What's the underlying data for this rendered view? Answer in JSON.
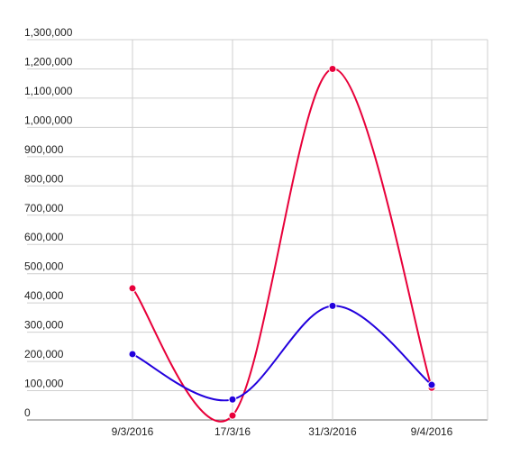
{
  "chart_data": {
    "type": "line",
    "title": "",
    "xlabel": "",
    "ylabel": "",
    "categories": [
      "9/3/2016",
      "17/3/16",
      "31/3/2016",
      "9/4/2016"
    ],
    "y_ticks": [
      "1,300,000",
      "1,200,000",
      "1,100,000",
      "1,000,000",
      "900,000",
      "800,000",
      "700,000",
      "600,000",
      "500,000",
      "400,000",
      "300,000",
      "200,000",
      "100,000",
      "0"
    ],
    "ylim": [
      0,
      1300000
    ],
    "grid": true,
    "curve": "smooth",
    "series": [
      {
        "color": "#e8003a",
        "values": [
          450000,
          15000,
          1200000,
          110000
        ]
      },
      {
        "color": "#2200dd",
        "values": [
          225000,
          70000,
          390000,
          120000
        ]
      }
    ]
  }
}
